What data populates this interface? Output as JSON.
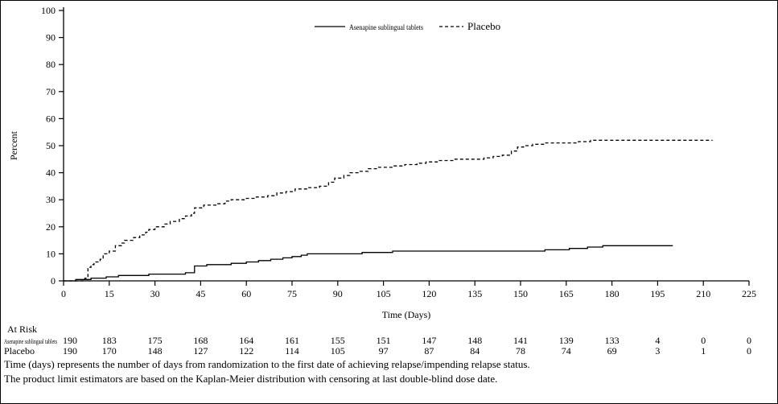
{
  "chart_data": {
    "type": "line",
    "title": "",
    "ylabel": "Percent",
    "xlabel": "Time (Days)",
    "xlim": [
      0,
      225
    ],
    "ylim": [
      0,
      100
    ],
    "xticks": [
      0,
      15,
      30,
      45,
      60,
      75,
      90,
      105,
      120,
      135,
      150,
      165,
      180,
      195,
      210,
      225
    ],
    "yticks": [
      0,
      10,
      20,
      30,
      40,
      50,
      60,
      70,
      80,
      90,
      100
    ],
    "grid": false,
    "legend_position": "top-center",
    "line_color": "#000000",
    "series": [
      {
        "name": "Asenapine sublingual tablets",
        "style": "solid",
        "step": true,
        "points": [
          [
            0,
            0
          ],
          [
            4,
            0.5
          ],
          [
            9,
            1
          ],
          [
            14,
            1.5
          ],
          [
            18,
            2
          ],
          [
            28,
            2.5
          ],
          [
            40,
            3
          ],
          [
            43,
            5.5
          ],
          [
            47,
            6
          ],
          [
            55,
            6.5
          ],
          [
            60,
            7
          ],
          [
            64,
            7.5
          ],
          [
            68,
            8
          ],
          [
            72,
            8.5
          ],
          [
            75,
            9
          ],
          [
            78,
            9.5
          ],
          [
            80,
            10
          ],
          [
            98,
            10.5
          ],
          [
            108,
            11
          ],
          [
            158,
            11.5
          ],
          [
            166,
            12
          ],
          [
            172,
            12.5
          ],
          [
            177,
            13
          ],
          [
            200,
            13
          ]
        ]
      },
      {
        "name": "Placebo",
        "style": "dashed",
        "step": true,
        "points": [
          [
            0,
            0
          ],
          [
            7,
            1
          ],
          [
            8,
            5
          ],
          [
            9,
            6
          ],
          [
            10,
            7
          ],
          [
            12,
            8
          ],
          [
            13,
            10
          ],
          [
            15,
            11
          ],
          [
            17,
            13
          ],
          [
            19,
            14
          ],
          [
            20,
            15
          ],
          [
            23,
            16
          ],
          [
            25,
            17
          ],
          [
            27,
            18
          ],
          [
            28,
            19
          ],
          [
            30,
            20
          ],
          [
            33,
            21
          ],
          [
            35,
            22
          ],
          [
            38,
            23
          ],
          [
            40,
            24
          ],
          [
            42,
            25
          ],
          [
            43,
            27
          ],
          [
            46,
            28
          ],
          [
            50,
            28.5
          ],
          [
            53,
            29.5
          ],
          [
            55,
            30
          ],
          [
            60,
            30.5
          ],
          [
            63,
            31
          ],
          [
            67,
            31.5
          ],
          [
            70,
            32.5
          ],
          [
            73,
            33
          ],
          [
            76,
            34
          ],
          [
            80,
            34.5
          ],
          [
            84,
            35
          ],
          [
            87,
            36.5
          ],
          [
            89,
            38
          ],
          [
            92,
            39
          ],
          [
            94,
            40
          ],
          [
            97,
            40.5
          ],
          [
            100,
            41.5
          ],
          [
            103,
            42
          ],
          [
            108,
            42.5
          ],
          [
            112,
            43
          ],
          [
            116,
            43.5
          ],
          [
            119,
            44
          ],
          [
            123,
            44.5
          ],
          [
            128,
            45
          ],
          [
            134,
            45
          ],
          [
            138,
            45.5
          ],
          [
            141,
            46
          ],
          [
            144,
            46.5
          ],
          [
            147,
            48
          ],
          [
            149,
            49.5
          ],
          [
            151,
            50
          ],
          [
            154,
            50.5
          ],
          [
            158,
            51
          ],
          [
            165,
            51
          ],
          [
            169,
            51.5
          ],
          [
            173,
            52
          ],
          [
            213,
            52
          ]
        ]
      }
    ]
  },
  "at_risk": {
    "label": "At Risk",
    "rows": [
      {
        "name": "Asenapine sublingual tablets",
        "values": [
          190,
          183,
          175,
          168,
          164,
          161,
          155,
          151,
          147,
          148,
          141,
          139,
          133,
          4,
          0,
          0
        ]
      },
      {
        "name": "Placebo",
        "values": [
          190,
          170,
          148,
          127,
          122,
          114,
          105,
          97,
          87,
          84,
          78,
          74,
          69,
          3,
          1,
          0
        ]
      }
    ]
  },
  "footnotes": [
    "Time (days) represents the number of days from randomization to the first date of achieving relapse/impending relapse status.",
    "The product limit estimators are based on the Kaplan-Meier distribution with censoring at last double-blind dose date."
  ]
}
